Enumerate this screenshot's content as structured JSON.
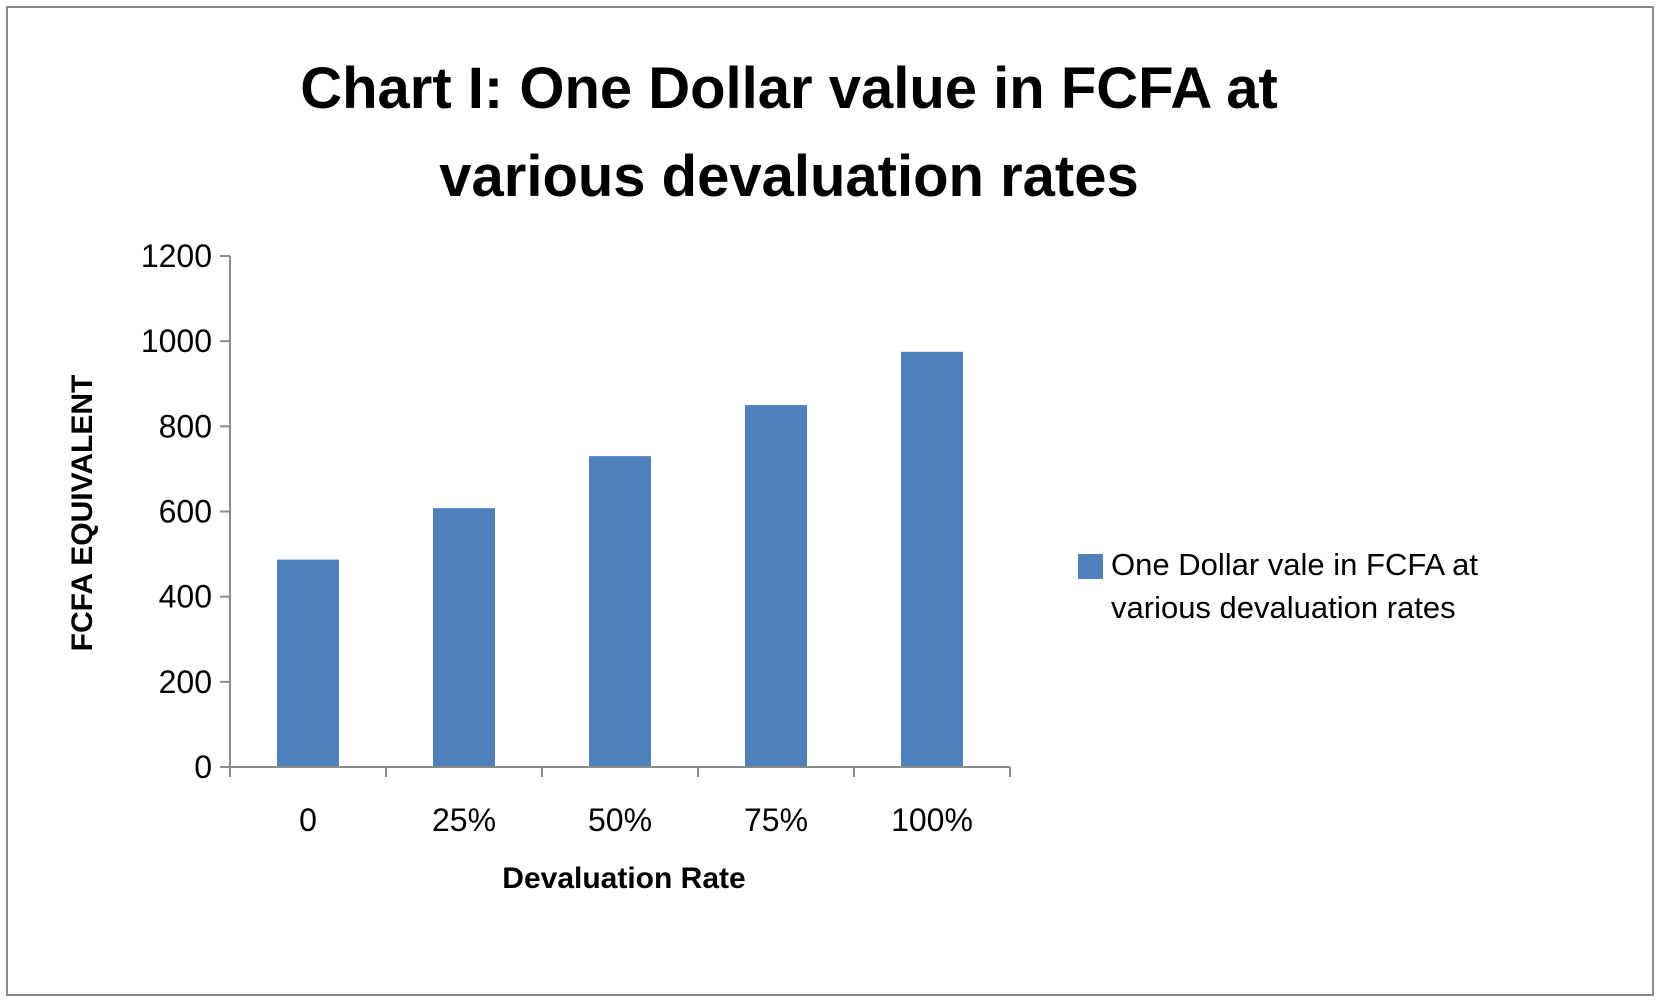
{
  "chart_data": {
    "type": "bar",
    "title_lines": [
      "Chart I: One  Dollar value in FCFA at",
      "various devaluation rates"
    ],
    "categories": [
      "0",
      "25%",
      "50%",
      "75%",
      "100%"
    ],
    "series": [
      {
        "name_lines": [
          "One  Dollar vale in FCFA at",
          "various devaluation rates"
        ],
        "values": [
          487,
          608,
          730,
          850,
          975
        ],
        "color": "#4f81bd"
      }
    ],
    "xlabel": "Devaluation Rate",
    "ylabel": "FCFA EQUIVALENT",
    "ylim": [
      0,
      1200
    ],
    "yticks": [
      "0",
      "200",
      "400",
      "600",
      "800",
      "1000",
      "1200"
    ],
    "grid": false,
    "legend_position": "right"
  }
}
